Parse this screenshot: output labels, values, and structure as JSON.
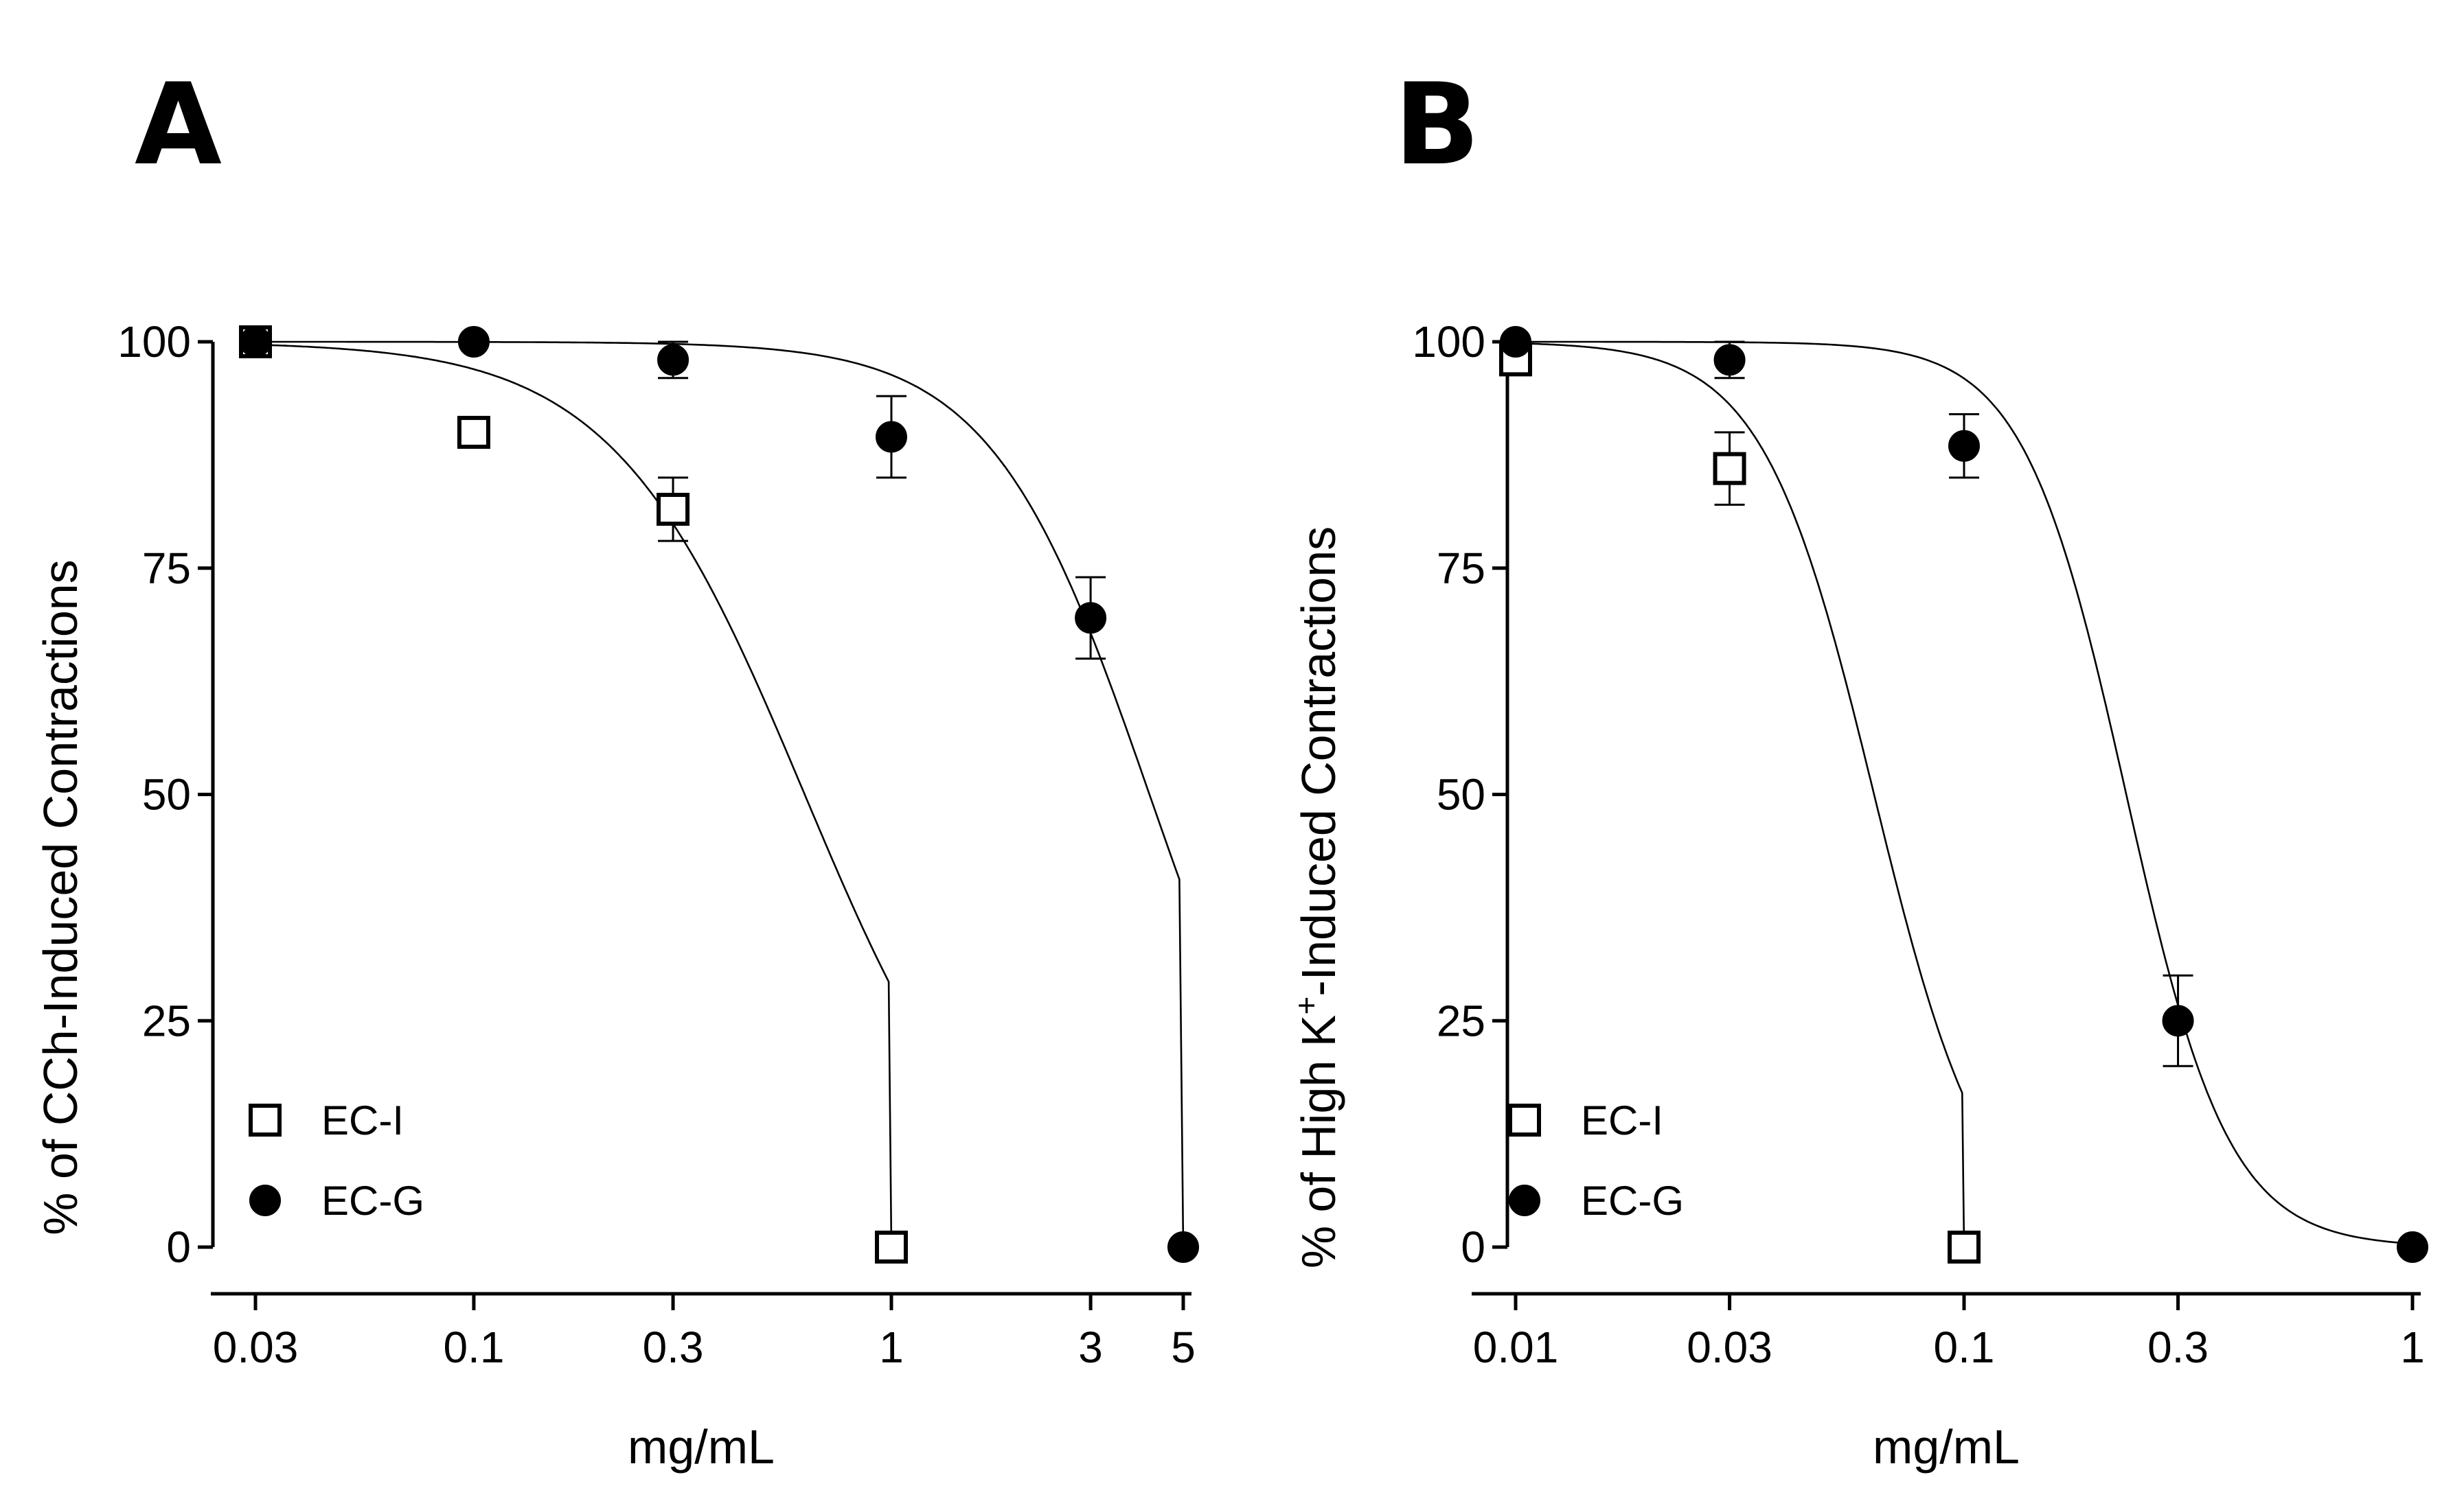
{
  "panels": [
    {
      "letter": "A",
      "chart_data": {
        "type": "scatter",
        "xscale": "log",
        "xlim": [
          0.03,
          5
        ],
        "ylim": [
          0,
          100
        ],
        "xticks": [
          0.03,
          0.1,
          0.3,
          1,
          3,
          5
        ],
        "xtick_labels": [
          "0.03",
          "0.1",
          "0.3",
          "1",
          "3",
          "5"
        ],
        "yticks": [
          0,
          25,
          50,
          75,
          100
        ],
        "ytick_labels": [
          "0",
          "25",
          "50",
          "75",
          "100"
        ],
        "xlabel": "mg/mL",
        "ylabel": "% of CCh-Induced Contractions",
        "ylabel_parts": [
          "% of CCh-Induced Contractions"
        ],
        "legend_position": "bottom-left",
        "series": [
          {
            "name": "EC-I",
            "marker": "open-square",
            "x": [
              0.03,
              0.1,
              0.3,
              1
            ],
            "y": [
              100,
              90,
              81.5,
              0
            ],
            "err": [
              0,
              1.5,
              3.5,
              0
            ],
            "fit": {
              "ic50": 0.62,
              "hill": 1.9,
              "top": 100,
              "bottom": 0,
              "xmin": 0.03,
              "xmax": 1
            }
          },
          {
            "name": "EC-G",
            "marker": "filled-circle",
            "x": [
              0.03,
              0.1,
              0.3,
              1,
              3,
              5
            ],
            "y": [
              100,
              100,
              98,
              89.5,
              69.5,
              0
            ],
            "err": [
              0,
              0,
              2,
              4.5,
              4.5,
              0
            ],
            "fit": {
              "ic50": 4.15,
              "hill": 2.3,
              "top": 100,
              "bottom": 0,
              "xmin": 0.03,
              "xmax": 5
            }
          }
        ]
      }
    },
    {
      "letter": "B",
      "chart_data": {
        "type": "scatter",
        "xscale": "log",
        "xlim": [
          0.01,
          1
        ],
        "ylim": [
          0,
          100
        ],
        "xticks": [
          0.01,
          0.03,
          0.1,
          0.3,
          1
        ],
        "xtick_labels": [
          "0.01",
          "0.03",
          "0.1",
          "0.3",
          "1"
        ],
        "yticks": [
          0,
          25,
          50,
          75,
          100
        ],
        "ytick_labels": [
          "0",
          "25",
          "50",
          "75",
          "100"
        ],
        "xlabel": "mg/mL",
        "ylabel": "% of High K+-Induced Contractions",
        "ylabel_parts": [
          "% of High K",
          "+",
          "-Induced Contractions"
        ],
        "legend_position": "bottom-left",
        "series": [
          {
            "name": "EC-I",
            "marker": "open-square",
            "x": [
              0.01,
              0.03,
              0.1
            ],
            "y": [
              98,
              86,
              0
            ],
            "err": [
              1,
              4,
              0
            ],
            "fit": {
              "ic50": 0.063,
              "hill": 3.5,
              "top": 100,
              "bottom": 0,
              "xmin": 0.01,
              "xmax": 0.1
            }
          },
          {
            "name": "EC-G",
            "marker": "filled-circle",
            "x": [
              0.01,
              0.03,
              0.1,
              0.3,
              1
            ],
            "y": [
              100,
              98,
              88.5,
              25,
              0
            ],
            "err": [
              0,
              2,
              3.5,
              5,
              0
            ],
            "fit": {
              "ic50": 0.23,
              "hill": 3.8,
              "top": 100,
              "bottom": 0,
              "xmin": 0.01,
              "xmax": 1
            }
          }
        ]
      }
    }
  ]
}
